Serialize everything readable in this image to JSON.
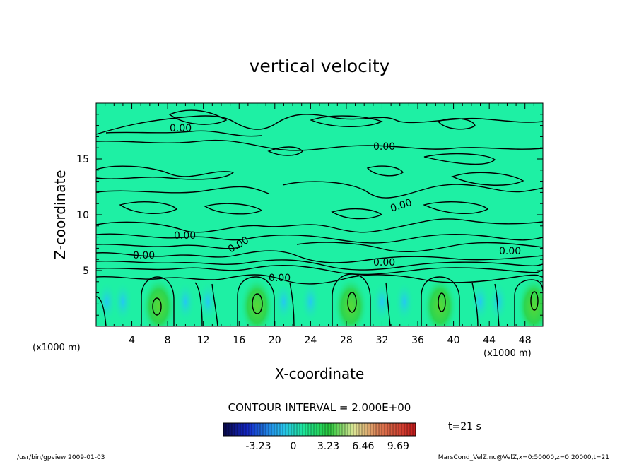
{
  "chart_data": {
    "type": "contour",
    "title": "vertical velocity",
    "xlabel": "X-coordinate",
    "ylabel": "Z-coordinate",
    "x_unit_left": "(x1000 m)",
    "x_unit_right": "(x1000 m)",
    "xlim": [
      0,
      50
    ],
    "ylim": [
      0,
      20
    ],
    "x_ticks": [
      4,
      8,
      12,
      16,
      20,
      24,
      28,
      32,
      36,
      40,
      44,
      48
    ],
    "y_ticks": [
      5,
      10,
      15
    ],
    "contour_labels": [
      "0.00",
      "0.00",
      "0.00",
      "0.00",
      "0.00",
      "0.00",
      "0.00",
      "0.00"
    ],
    "updraft_centers_x": [
      7,
      18,
      28.5,
      38.5,
      49
    ],
    "contour_interval": "CONTOUR INTERVAL = 2.000E+00",
    "colorbar": {
      "ticks": [
        "-3.23",
        "0",
        "3.23",
        "6.46",
        "9.69"
      ],
      "tick_values": [
        -3.23,
        0,
        3.23,
        6.46,
        9.69
      ],
      "range": [
        -6.46,
        11.3
      ]
    },
    "time_label": "t=21 s",
    "colors": {
      "background": "#1ef0a4",
      "updraft": "#2bd640",
      "downdraft": "#28d6f0"
    }
  },
  "footer": {
    "left": "/usr/bin/gpview   2009-01-03",
    "right": "MarsCond_VelZ.nc@VelZ,x=0:50000,z=0:20000,t=21"
  }
}
